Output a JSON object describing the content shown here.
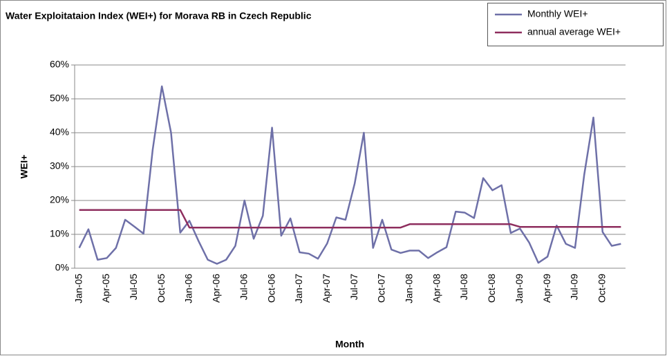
{
  "chart_data": {
    "type": "line",
    "title": "Water Exploitataion Index (WEI+) for Morava RB in Czech Republic",
    "x_label": "Month",
    "y_label": "WEI+",
    "categories": [
      "Jan-05",
      null,
      null,
      "Apr-05",
      null,
      null,
      "Jul-05",
      null,
      null,
      "Oct-05",
      null,
      null,
      "Jan-06",
      null,
      null,
      "Apr-06",
      null,
      null,
      "Jul-06",
      null,
      null,
      "Oct-06",
      null,
      null,
      "Jan-07",
      null,
      null,
      "Apr-07",
      null,
      null,
      "Jul-07",
      null,
      null,
      "Oct-07",
      null,
      null,
      "Jan-08",
      null,
      null,
      "Apr-08",
      null,
      null,
      "Jul-08",
      null,
      null,
      "Oct-08",
      null,
      null,
      "Jan-09",
      null,
      null,
      "Apr-09",
      null,
      null,
      "Jul-09",
      null,
      null,
      "Oct-09",
      null,
      null
    ],
    "series": [
      {
        "name": "Monthly WEI+",
        "color": "#6e70a8",
        "values": [
          6,
          11.5,
          2.5,
          3,
          6,
          14.3,
          12.3,
          10.2,
          35,
          53.7,
          40,
          10.5,
          14,
          8,
          2.5,
          1.3,
          2.5,
          6.6,
          20,
          8.7,
          15.5,
          41.5,
          9.6,
          14.7,
          4.7,
          4.3,
          2.8,
          7.3,
          15,
          14.3,
          25,
          40,
          6,
          14.3,
          5.5,
          4.5,
          5.2,
          5.2,
          3,
          4.7,
          6.2,
          16.7,
          16.4,
          14.8,
          26.6,
          23,
          24.5,
          10.4,
          11.7,
          7.6,
          1.6,
          3.4,
          12.6,
          7.2,
          6,
          27.6,
          44.5,
          10.7,
          6.6,
          7.2
        ]
      },
      {
        "name": "annual average WEI+",
        "color": "#8e2e5e",
        "values": [
          17.2,
          17.2,
          17.2,
          17.2,
          17.2,
          17.2,
          17.2,
          17.2,
          17.2,
          17.2,
          17.2,
          17.2,
          12,
          12,
          12,
          12,
          12,
          12,
          12,
          12,
          12,
          12,
          12,
          12,
          12,
          12,
          12,
          12,
          12,
          12,
          12,
          12,
          12,
          12,
          12,
          12,
          13,
          13,
          13,
          13,
          13,
          13,
          13,
          13,
          13,
          13,
          13,
          13,
          12.2,
          12.2,
          12.2,
          12.2,
          12.2,
          12.2,
          12.2,
          12.2,
          12.2,
          12.2,
          12.2,
          12.2
        ]
      }
    ],
    "ylim": [
      0,
      60
    ],
    "yticks": [
      {
        "value": 0,
        "label": "0%"
      },
      {
        "value": 10,
        "label": "10%"
      },
      {
        "value": 20,
        "label": "20%"
      },
      {
        "value": 30,
        "label": "30%"
      },
      {
        "value": 40,
        "label": "40%"
      },
      {
        "value": 50,
        "label": "50%"
      },
      {
        "value": 60,
        "label": "60%"
      }
    ],
    "grid": true,
    "legend": "top-right"
  }
}
